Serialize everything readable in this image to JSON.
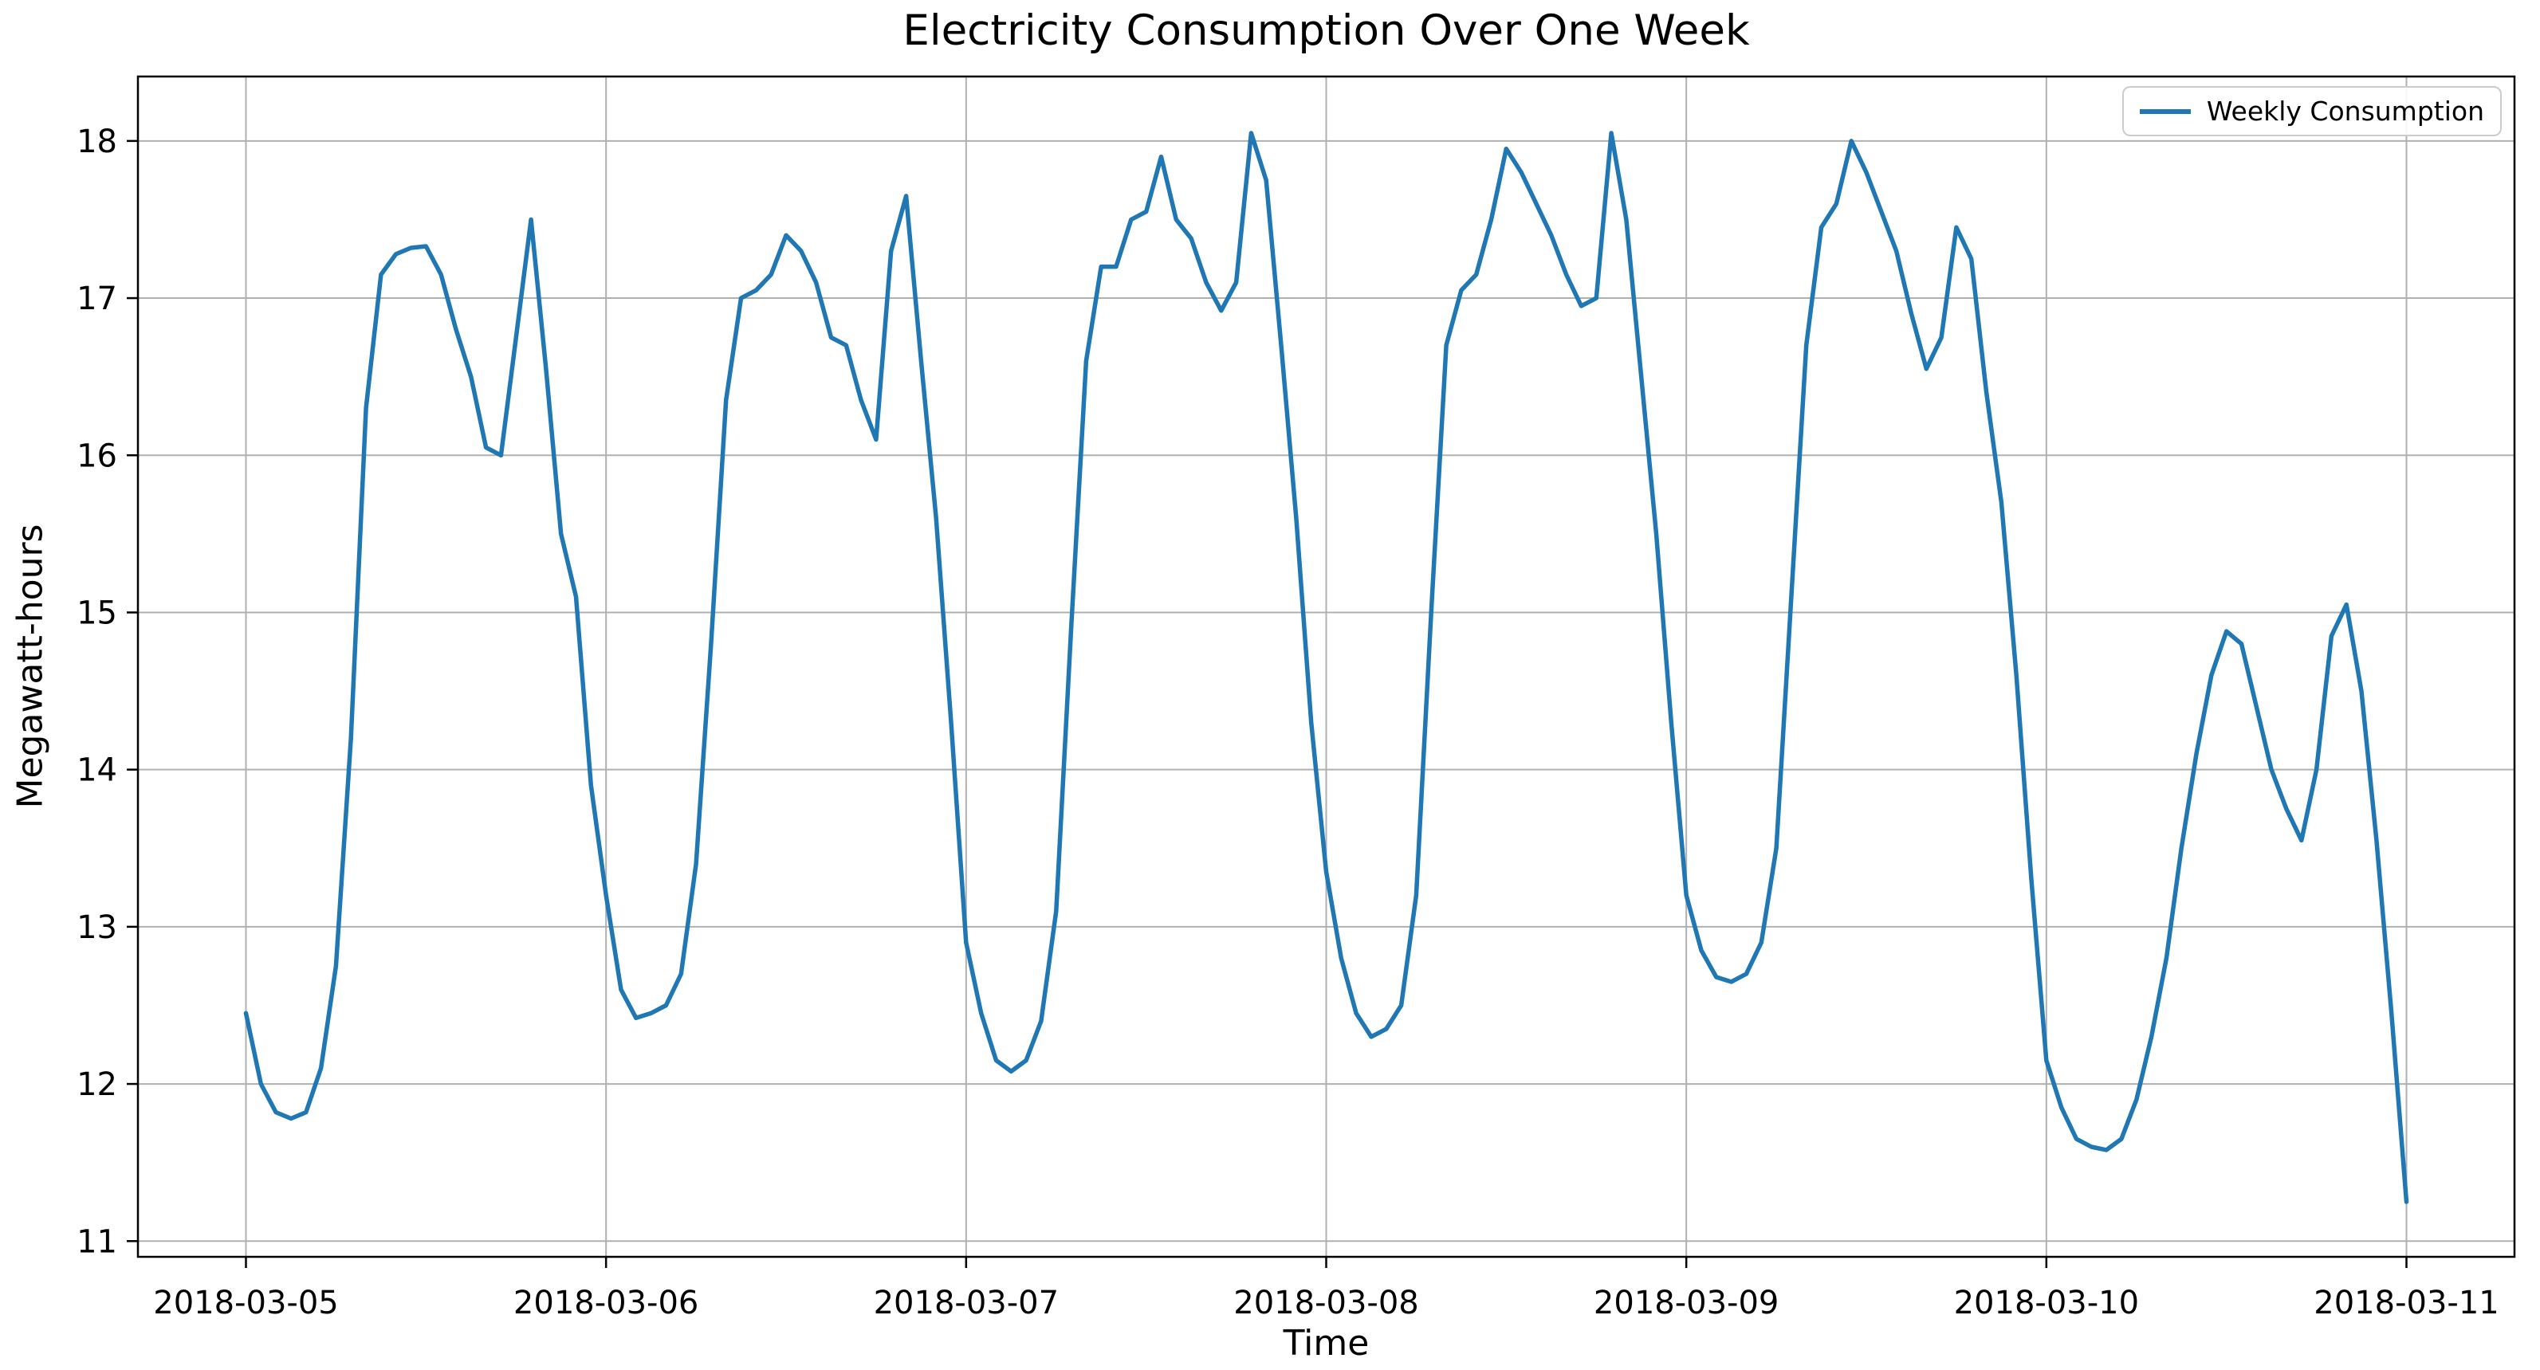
{
  "chart_data": {
    "type": "line",
    "title": "Electricity Consumption Over One Week",
    "xlabel": "Time",
    "ylabel": "Megawatt-hours",
    "grid": true,
    "legend_position": "upper right",
    "line_color": "#1f77b4",
    "grid_color": "#b0b0b0",
    "series_name": "Weekly Consumption",
    "x_start": "2018-03-05 00:00",
    "x_interval_hours": 1,
    "x_tick_hours": [
      0,
      24,
      48,
      72,
      96,
      120,
      144
    ],
    "x_tick_labels": [
      "2018-03-05",
      "2018-03-06",
      "2018-03-07",
      "2018-03-08",
      "2018-03-09",
      "2018-03-10",
      "2018-03-11"
    ],
    "y_ticks": [
      11,
      12,
      13,
      14,
      15,
      16,
      17,
      18
    ],
    "xlim_hours": [
      -7.2,
      151.2
    ],
    "ylim": [
      10.9,
      18.41
    ],
    "values": [
      12.45,
      12.0,
      11.82,
      11.78,
      11.82,
      12.1,
      12.75,
      14.2,
      16.3,
      17.15,
      17.28,
      17.32,
      17.33,
      17.15,
      16.8,
      16.5,
      16.05,
      16.0,
      16.75,
      17.5,
      16.55,
      15.5,
      15.1,
      13.9,
      13.2,
      12.6,
      12.42,
      12.45,
      12.5,
      12.7,
      13.4,
      14.8,
      16.35,
      17.0,
      17.05,
      17.15,
      17.4,
      17.3,
      17.1,
      16.75,
      16.7,
      16.35,
      16.1,
      17.3,
      17.65,
      16.6,
      15.6,
      14.3,
      12.9,
      12.45,
      12.15,
      12.08,
      12.15,
      12.4,
      13.1,
      14.9,
      16.6,
      17.2,
      17.2,
      17.5,
      17.55,
      17.9,
      17.5,
      17.38,
      17.1,
      16.92,
      17.1,
      18.05,
      17.75,
      16.7,
      15.6,
      14.3,
      13.35,
      12.8,
      12.45,
      12.3,
      12.35,
      12.5,
      13.2,
      15.0,
      16.7,
      17.05,
      17.15,
      17.5,
      17.95,
      17.8,
      17.6,
      17.4,
      17.15,
      16.95,
      17.0,
      18.05,
      17.5,
      16.5,
      15.5,
      14.3,
      13.2,
      12.85,
      12.68,
      12.65,
      12.7,
      12.9,
      13.5,
      15.1,
      16.7,
      17.45,
      17.6,
      18.0,
      17.8,
      17.55,
      17.3,
      16.9,
      16.55,
      16.75,
      17.45,
      17.25,
      16.4,
      15.7,
      14.6,
      13.3,
      12.15,
      11.85,
      11.65,
      11.6,
      11.58,
      11.65,
      11.9,
      12.3,
      12.8,
      13.5,
      14.1,
      14.6,
      14.88,
      14.8,
      14.4,
      14.0,
      13.75,
      13.55,
      14.0,
      14.85,
      15.05,
      14.5,
      13.55,
      12.45,
      11.25
    ]
  }
}
